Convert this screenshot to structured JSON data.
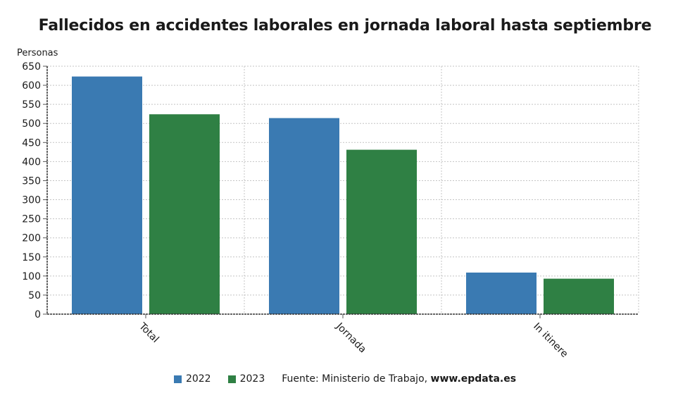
{
  "chart_data": {
    "type": "bar",
    "title": "Fallecidos en accidentes laborales en jornada laboral hasta septiembre",
    "ylabel": "Personas",
    "xlabel": "",
    "categories": [
      "Total",
      "Jornada",
      "In itinere"
    ],
    "series": [
      {
        "name": "2022",
        "color": "#3a7ab2",
        "values": [
          623,
          514,
          109
        ]
      },
      {
        "name": "2023",
        "color": "#2f8044",
        "values": [
          524,
          431,
          93
        ]
      }
    ],
    "ylim": [
      0,
      650
    ],
    "yticks": [
      "0",
      "50",
      "100",
      "150",
      "200",
      "250",
      "300",
      "350",
      "400",
      "450",
      "500",
      "550",
      "600",
      "650"
    ],
    "grid": true,
    "legend": "bottom-center"
  },
  "source": {
    "label": "Fuente: Ministerio de Trabajo,",
    "site": "www.epdata.es"
  }
}
